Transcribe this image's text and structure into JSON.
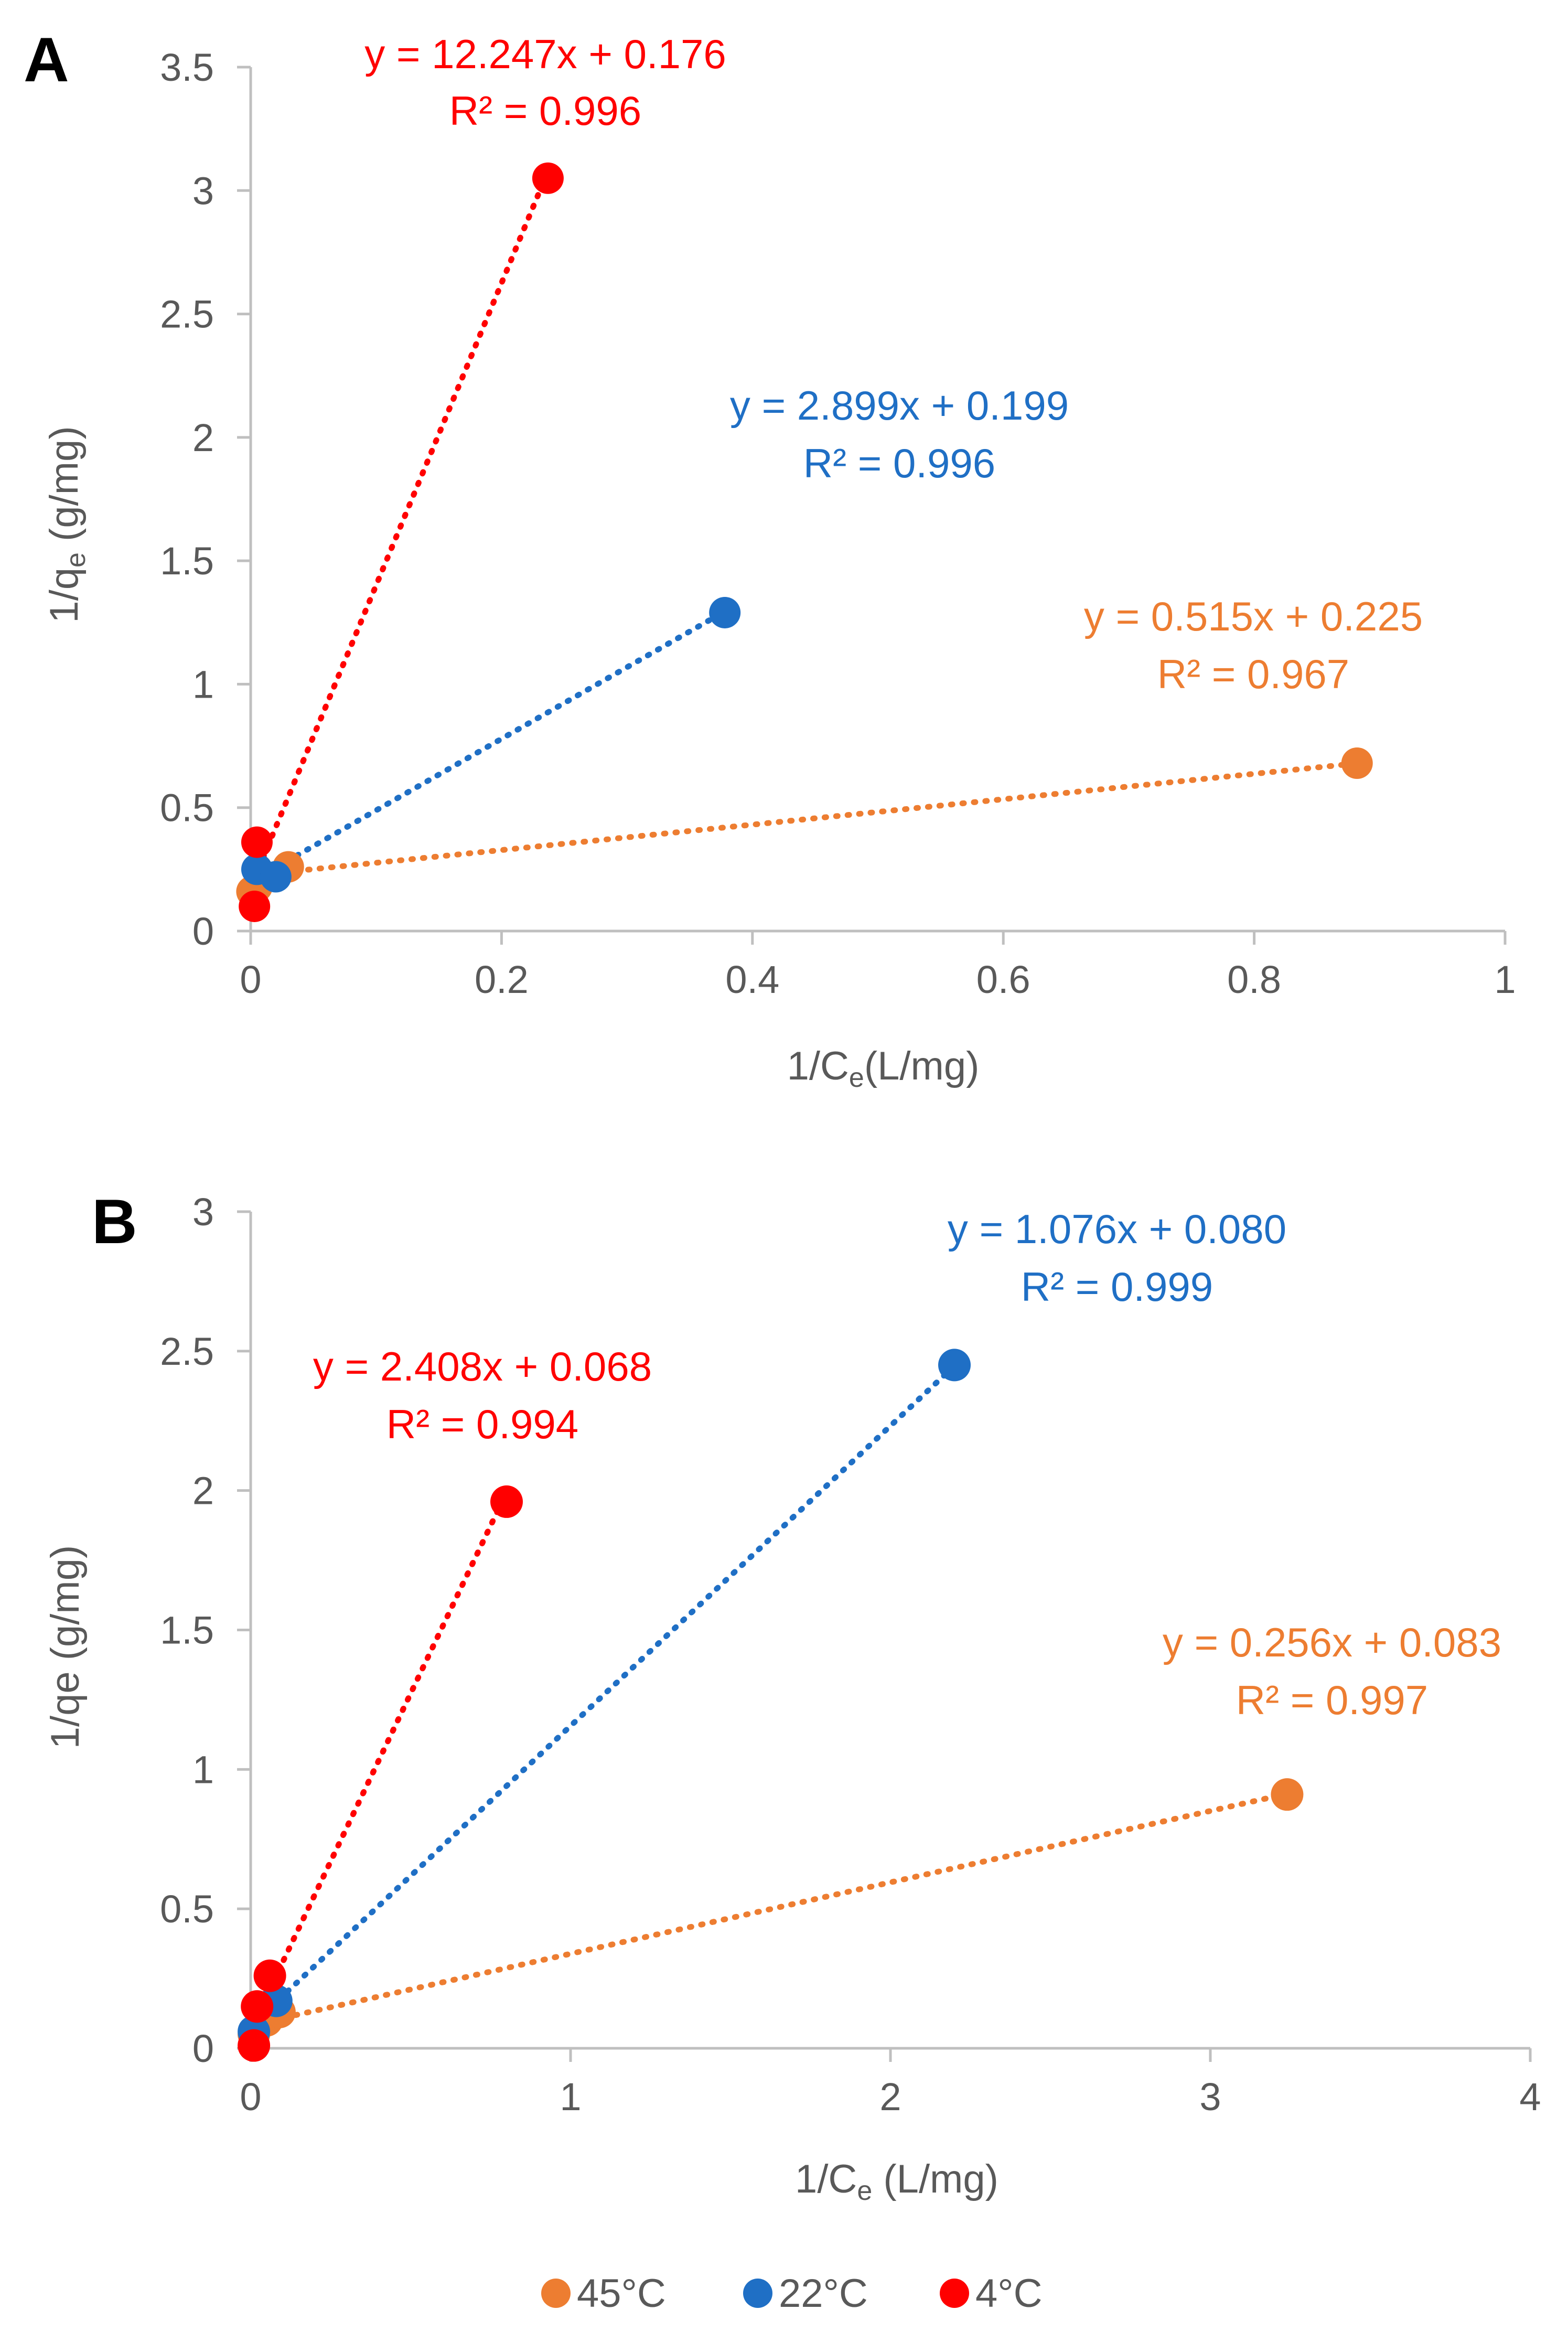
{
  "legend": {
    "items": [
      {
        "label": "45°C",
        "color": "#ED7D31"
      },
      {
        "label": "22°C",
        "color": "#1F6FC5"
      },
      {
        "label": "4°C",
        "color": "#FF0000"
      }
    ]
  },
  "chart_data": [
    {
      "panel": "A",
      "type": "scatter",
      "xlabel": "1/Ce(L/mg)",
      "ylabel": "1/qe (g/mg)",
      "xlim": [
        0,
        1
      ],
      "ylim": [
        0,
        3.5
      ],
      "xticks": [
        "0",
        "0.2",
        "0.4",
        "0.6",
        "0.8",
        "1"
      ],
      "yticks": [
        "0",
        "0.5",
        "1",
        "1.5",
        "2",
        "2.5",
        "3",
        "3.5"
      ],
      "series": [
        {
          "name": "45°C",
          "color": "#ED7D31",
          "points": [
            [
              0.001,
              0.16
            ],
            [
              0.005,
              0.18
            ],
            [
              0.03,
              0.26
            ],
            [
              0.882,
              0.68
            ]
          ],
          "trendline": {
            "x0": 0.0,
            "x1": 0.882,
            "slope": 0.515,
            "intercept": 0.225
          },
          "equation": "y = 0.515x + 0.225",
          "r2": "R² = 0.967"
        },
        {
          "name": "22°C",
          "color": "#1F6FC5",
          "points": [
            [
              0.005,
              0.25
            ],
            [
              0.02,
              0.22
            ],
            [
              0.378,
              1.29
            ]
          ],
          "trendline": {
            "x0": 0.005,
            "x1": 0.378,
            "slope": 2.899,
            "intercept": 0.199
          },
          "equation": "y = 2.899x + 0.199",
          "r2": "R² = 0.996"
        },
        {
          "name": "4°C",
          "color": "#FF0000",
          "points": [
            [
              0.003,
              0.1
            ],
            [
              0.005,
              0.36
            ],
            [
              0.237,
              3.05
            ]
          ],
          "trendline": {
            "x0": 0.003,
            "x1": 0.237,
            "slope": 12.247,
            "intercept": 0.176
          },
          "equation": "y = 12.247x + 0.176",
          "r2": "R² = 0.996"
        }
      ]
    },
    {
      "panel": "B",
      "type": "scatter",
      "xlabel": "1/Ce (L/mg)",
      "ylabel": "1/qe (g/mg)",
      "xlim": [
        0,
        4
      ],
      "ylim": [
        0,
        3
      ],
      "xticks": [
        "0",
        "1",
        "2",
        "3",
        "4"
      ],
      "yticks": [
        "0",
        "0.5",
        "1",
        "1.5",
        "2",
        "2.5",
        "3"
      ],
      "series": [
        {
          "name": "45°C",
          "color": "#ED7D31",
          "points": [
            [
              0.01,
              0.05
            ],
            [
              0.05,
              0.1
            ],
            [
              0.09,
              0.13
            ],
            [
              3.24,
              0.91
            ]
          ],
          "trendline": {
            "x0": 0.0,
            "x1": 3.24,
            "slope": 0.256,
            "intercept": 0.083
          },
          "equation": "y = 0.256x + 0.083",
          "r2": "R² = 0.997"
        },
        {
          "name": "22°C",
          "color": "#1F6FC5",
          "points": [
            [
              0.01,
              0.06
            ],
            [
              0.08,
              0.17
            ],
            [
              2.2,
              2.45
            ]
          ],
          "trendline": {
            "x0": 0.01,
            "x1": 2.2,
            "slope": 1.076,
            "intercept": 0.08
          },
          "equation": "y = 1.076x + 0.080",
          "r2": "R² = 0.999"
        },
        {
          "name": "4°C",
          "color": "#FF0000",
          "points": [
            [
              0.01,
              0.01
            ],
            [
              0.02,
              0.15
            ],
            [
              0.06,
              0.26
            ],
            [
              0.8,
              1.96
            ]
          ],
          "trendline": {
            "x0": 0.01,
            "x1": 0.8,
            "slope": 2.408,
            "intercept": 0.068
          },
          "equation": "y = 2.408x + 0.068",
          "r2": "R² = 0.994"
        }
      ]
    }
  ]
}
